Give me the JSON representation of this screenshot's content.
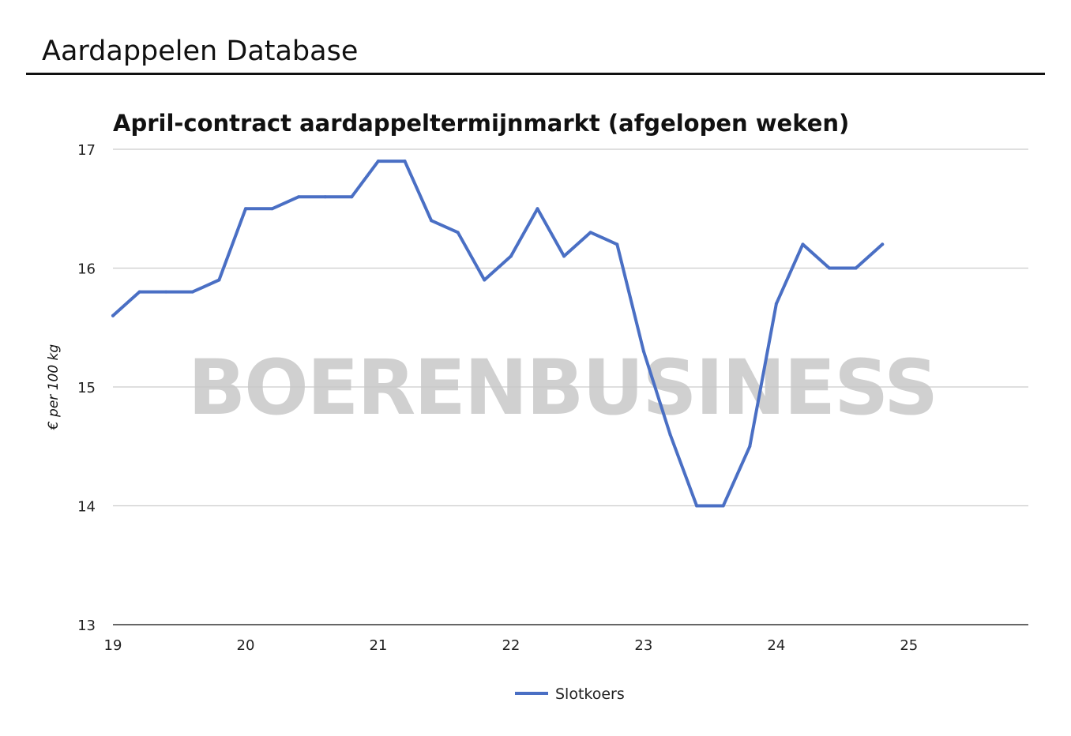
{
  "header": {
    "title": "Aardappelen Database"
  },
  "watermark": {
    "text": "BOERENBUSINESS"
  },
  "chart_data": {
    "type": "line",
    "title": "April-contract aardappeltermijnmarkt (afgelopen weken)",
    "xlabel": "",
    "ylabel": "€ per 100 kg",
    "xlim": [
      19,
      25.9
    ],
    "ylim": [
      13,
      17
    ],
    "xticks": [
      19,
      20,
      21,
      22,
      23,
      24,
      25
    ],
    "yticks": [
      13,
      14,
      15,
      16,
      17
    ],
    "grid": true,
    "legend_position": "bottom",
    "series_color": "#4a6fc4",
    "series": [
      {
        "name": "Slotkoers",
        "x": [
          19.0,
          19.2,
          19.4,
          19.6,
          19.8,
          20.0,
          20.2,
          20.4,
          20.6,
          20.8,
          21.0,
          21.2,
          21.4,
          21.6,
          21.8,
          22.0,
          22.2,
          22.4,
          22.6,
          22.8,
          23.0,
          23.2,
          23.4,
          23.6,
          23.8,
          24.0,
          24.2,
          24.4,
          24.6,
          24.8
        ],
        "y": [
          15.6,
          15.8,
          15.8,
          15.8,
          15.9,
          16.5,
          16.5,
          16.6,
          16.6,
          16.6,
          16.9,
          16.9,
          16.4,
          16.3,
          15.9,
          16.1,
          16.5,
          16.1,
          16.3,
          16.2,
          15.3,
          14.6,
          14.0,
          14.0,
          14.5,
          15.7,
          16.2,
          16.0,
          16.0,
          16.2
        ]
      }
    ]
  }
}
